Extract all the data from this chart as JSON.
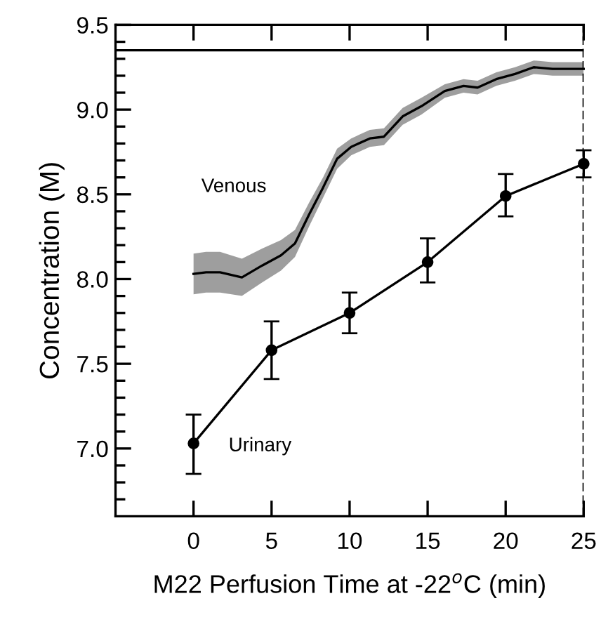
{
  "chart_data": {
    "type": "line",
    "xlabel": "M22 Perfusion Time at -22$^{o}$C (min)",
    "ylabel": "Concentration (M)",
    "xlim": [
      -5,
      25
    ],
    "ylim": [
      6.6,
      9.5
    ],
    "xticks": [
      0,
      5,
      10,
      15,
      20,
      25
    ],
    "yticks": [
      {
        "value": 6.7,
        "label": null
      },
      {
        "value": 6.8,
        "label": null
      },
      {
        "value": 6.9,
        "label": null
      },
      {
        "value": 7.0,
        "label": "7.0"
      },
      {
        "value": 7.1,
        "label": null
      },
      {
        "value": 7.2,
        "label": null
      },
      {
        "value": 7.3,
        "label": null
      },
      {
        "value": 7.4,
        "label": null
      },
      {
        "value": 7.5,
        "label": "7.5"
      },
      {
        "value": 7.6,
        "label": null
      },
      {
        "value": 7.7,
        "label": null
      },
      {
        "value": 7.8,
        "label": null
      },
      {
        "value": 7.9,
        "label": null
      },
      {
        "value": 8.0,
        "label": "8.0"
      },
      {
        "value": 8.1,
        "label": null
      },
      {
        "value": 8.2,
        "label": null
      },
      {
        "value": 8.3,
        "label": null
      },
      {
        "value": 8.4,
        "label": null
      },
      {
        "value": 8.5,
        "label": "8.5"
      },
      {
        "value": 8.6,
        "label": null
      },
      {
        "value": 8.7,
        "label": null
      },
      {
        "value": 8.8,
        "label": null
      },
      {
        "value": 8.9,
        "label": null
      },
      {
        "value": 9.0,
        "label": "9.0"
      },
      {
        "value": 9.1,
        "label": null
      },
      {
        "value": 9.2,
        "label": null
      },
      {
        "value": 9.3,
        "label": null
      },
      {
        "value": 9.4,
        "label": null
      },
      {
        "value": 9.5,
        "label": "9.5"
      }
    ],
    "grid": false,
    "legend": false,
    "ref_lines": [
      {
        "axis": "y",
        "value": 9.35,
        "color": "#000000",
        "line_style": "solid"
      },
      {
        "axis": "x",
        "value": 25,
        "color": "#000000",
        "line_style": "dashed"
      }
    ],
    "series": [
      {
        "name": "Venous",
        "color": "#000000",
        "marker": "none",
        "x": [
          0,
          0.8,
          1.7,
          3.1,
          4.4,
          5.6,
          6.5,
          7.4,
          8.3,
          9.2,
          10.1,
          11.3,
          12.2,
          13.4,
          14.6,
          16.1,
          17.3,
          18.2,
          19.4,
          20.6,
          21.8,
          23.0,
          25
        ],
        "values": [
          8.03,
          8.04,
          8.04,
          8.01,
          8.08,
          8.14,
          8.21,
          8.38,
          8.54,
          8.71,
          8.78,
          8.83,
          8.84,
          8.96,
          9.02,
          9.11,
          9.14,
          9.13,
          9.18,
          9.21,
          9.25,
          9.24,
          9.24
        ],
        "lower": [
          7.91,
          7.92,
          7.92,
          7.9,
          7.98,
          8.05,
          8.13,
          8.31,
          8.48,
          8.65,
          8.73,
          8.78,
          8.79,
          8.91,
          8.97,
          9.07,
          9.1,
          9.09,
          9.14,
          9.17,
          9.21,
          9.2,
          9.2
        ],
        "upper": [
          8.15,
          8.16,
          8.16,
          8.12,
          8.18,
          8.23,
          8.29,
          8.45,
          8.6,
          8.77,
          8.83,
          8.88,
          8.89,
          9.01,
          9.07,
          9.15,
          9.18,
          9.17,
          9.22,
          9.25,
          9.29,
          9.28,
          9.28
        ]
      },
      {
        "name": "Urinary",
        "color": "#000000",
        "marker": "circle",
        "x": [
          0,
          5,
          10,
          15,
          20,
          25
        ],
        "values": [
          7.03,
          7.58,
          7.8,
          8.1,
          8.49,
          8.68
        ],
        "errors": [
          [
            6.85,
            7.2
          ],
          [
            7.41,
            7.75
          ],
          [
            7.68,
            7.92
          ],
          [
            7.98,
            8.24
          ],
          [
            8.37,
            8.62
          ],
          [
            8.6,
            8.76
          ]
        ]
      }
    ]
  }
}
